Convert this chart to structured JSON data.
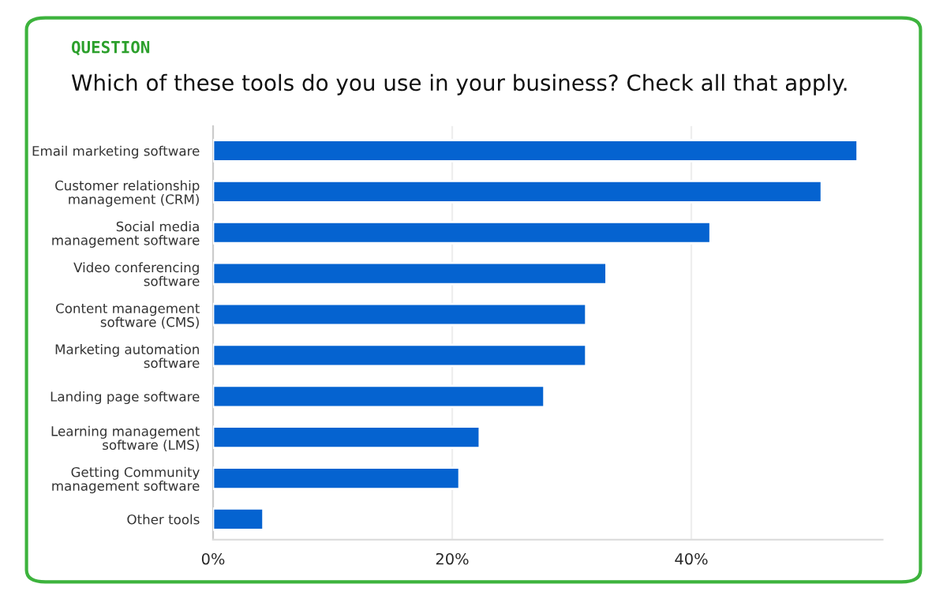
{
  "chart_data": {
    "type": "bar",
    "orientation": "horizontal",
    "title": "Which of these tools do you use in your business? Check all that apply.",
    "annotations": [
      "QUESTION"
    ],
    "categories": [
      "Email marketing software",
      "Customer relationship\nmanagement (CRM)",
      "Social media\nmanagement software",
      "Video conferencing\nsoftware",
      "Content management\nsoftware (CMS)",
      "Marketing automation\nsoftware",
      "Landing page software",
      "Learning management\nsoftware (LMS)",
      "Getting Community\nmanagement software",
      "Other tools"
    ],
    "values": [
      53.9,
      50.9,
      41.6,
      32.9,
      31.2,
      31.2,
      27.7,
      22.3,
      20.6,
      4.2
    ],
    "color": "#0563d0",
    "xlim": [
      0,
      56
    ],
    "xticks": [
      {
        "value": 0,
        "label": "0%"
      },
      {
        "value": 20,
        "label": "20%"
      },
      {
        "value": 40,
        "label": "40%"
      }
    ],
    "grid": "x"
  }
}
